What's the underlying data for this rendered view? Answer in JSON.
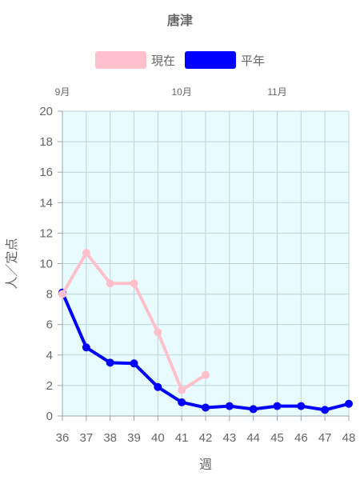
{
  "chart_data": {
    "type": "line",
    "title": "唐津",
    "xlabel": "週",
    "ylabel": "人／定点",
    "x": [
      36,
      37,
      38,
      39,
      40,
      41,
      42,
      43,
      44,
      45,
      46,
      47,
      48
    ],
    "ylim": [
      0,
      20
    ],
    "y_ticks": [
      0,
      2,
      4,
      6,
      8,
      10,
      12,
      14,
      16,
      18,
      20
    ],
    "month_labels": [
      {
        "label": "9月",
        "week": 36
      },
      {
        "label": "10月",
        "week": 41
      },
      {
        "label": "11月",
        "week": 45
      }
    ],
    "series": [
      {
        "name": "現在",
        "color": "#ffc0cb",
        "values": [
          8.0,
          10.7,
          8.7,
          8.7,
          5.5,
          1.7,
          2.7,
          null,
          null,
          null,
          null,
          null,
          null
        ]
      },
      {
        "name": "平年",
        "color": "#0000ff",
        "values": [
          8.1,
          4.5,
          3.5,
          3.45,
          1.9,
          0.9,
          0.55,
          0.65,
          0.45,
          0.65,
          0.65,
          0.4,
          0.8
        ]
      }
    ],
    "plot_background": "#e8fcff",
    "grid": true,
    "legend_position": "top"
  }
}
